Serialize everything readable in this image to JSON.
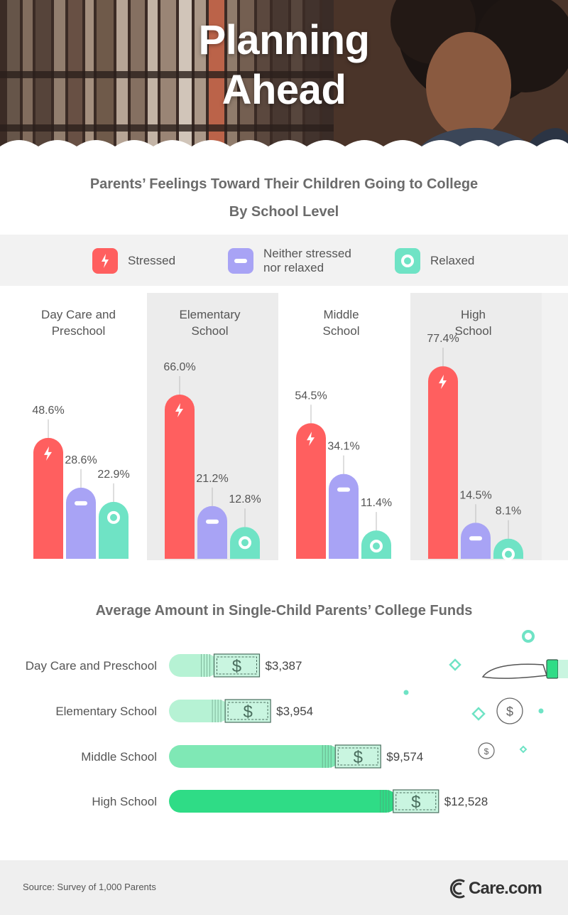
{
  "hero": {
    "title_line1": "Planning",
    "title_line2": "Ahead"
  },
  "chart1": {
    "title_line1": "Parents’ Feelings Toward Their Children Going to College",
    "title_line2": "By School Level"
  },
  "legend": {
    "stressed": "Stressed",
    "neither_line1": "Neither stressed",
    "neither_line2": "nor relaxed",
    "relaxed": "Relaxed"
  },
  "colors": {
    "stressed": "#ff5f5f",
    "neither": "#a8a3f5",
    "relaxed": "#6fe3c5",
    "panel_gray": "#ececec",
    "fund_light": "#b6f2d4",
    "fund_mid": "#7fe8b5",
    "fund_dark": "#2fdc86",
    "bill": "#c9f5e0"
  },
  "chart_data": [
    {
      "type": "bar",
      "title": "Parents’ Feelings Toward Their Children Going to College",
      "subtitle": "By School Level",
      "categories": [
        [
          "Day Care and",
          "Preschool"
        ],
        [
          "Elementary",
          "School"
        ],
        [
          "Middle",
          "School"
        ],
        [
          "High",
          "School"
        ]
      ],
      "series": [
        {
          "name": "Stressed",
          "values": [
            48.6,
            66.0,
            54.5,
            77.4
          ],
          "labels": [
            "48.6%",
            "66.0%",
            "54.5%",
            "77.4%"
          ]
        },
        {
          "name": "Neither stressed nor relaxed",
          "values": [
            28.6,
            21.2,
            34.1,
            14.5
          ],
          "labels": [
            "28.6%",
            "21.2%",
            "34.1%",
            "14.5%"
          ]
        },
        {
          "name": "Relaxed",
          "values": [
            22.9,
            12.8,
            11.4,
            8.1
          ],
          "labels": [
            "22.9%",
            "12.8%",
            "11.4%",
            "8.1%"
          ]
        }
      ],
      "legend": "top"
    },
    {
      "type": "bar",
      "orientation": "horizontal",
      "title": "Average Amount in Single-Child Parents’ College Funds",
      "categories": [
        "Day Care and Preschool",
        "Elementary School",
        "Middle School",
        "High School"
      ],
      "values": [
        3387,
        3954,
        9574,
        12528
      ],
      "labels": [
        "$3,387",
        "$3,954",
        "$9,574",
        "$12,528"
      ]
    }
  ],
  "chart2": {
    "title": "Average Amount in Single-Child Parents’ College Funds"
  },
  "footer": {
    "source": "Source: Survey of 1,000 Parents",
    "logo_text": "Care.com"
  }
}
